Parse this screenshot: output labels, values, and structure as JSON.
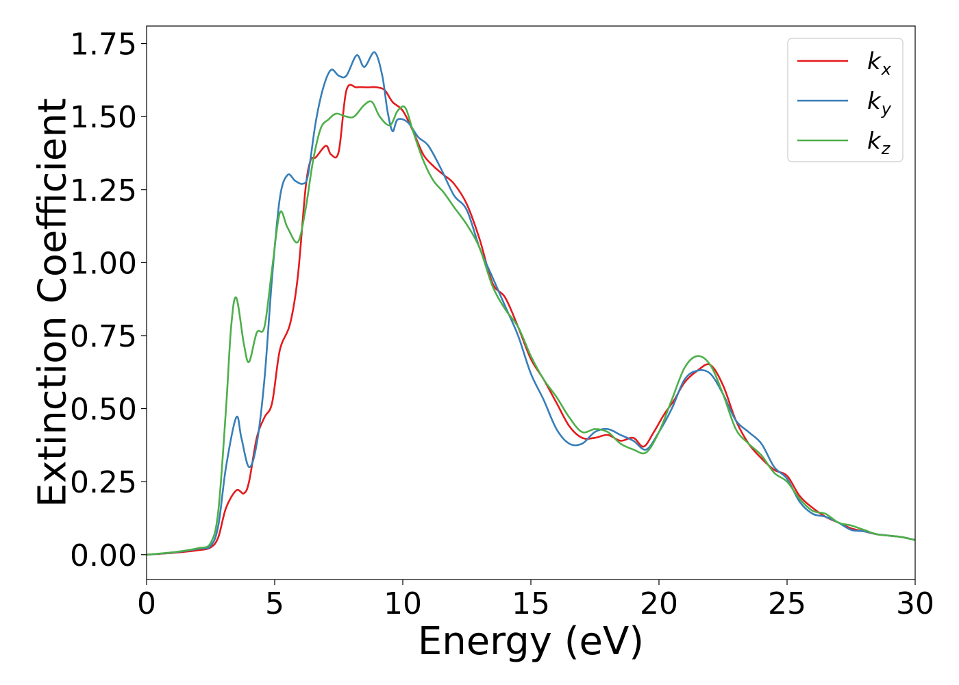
{
  "chart_data": {
    "type": "line",
    "title": "",
    "xlabel": "Energy (eV)",
    "ylabel": "Extinction Coefficient",
    "xlim": [
      0,
      30
    ],
    "ylim": [
      -0.085,
      1.81
    ],
    "xticks": [
      0,
      5,
      10,
      15,
      20,
      25,
      30
    ],
    "xtick_labels": [
      "0",
      "5",
      "10",
      "15",
      "20",
      "25",
      "30"
    ],
    "yticks": [
      0.0,
      0.25,
      0.5,
      0.75,
      1.0,
      1.25,
      1.5,
      1.75
    ],
    "ytick_labels": [
      "0.00",
      "0.25",
      "0.50",
      "0.75",
      "1.00",
      "1.25",
      "1.50",
      "1.75"
    ],
    "grid": false,
    "legend_position": "top-right",
    "series": [
      {
        "name": "k_x",
        "label_main": "k",
        "label_sub": "x",
        "color": "#e41a1c",
        "x": [
          0,
          1,
          2,
          2.5,
          2.8,
          3.1,
          3.5,
          3.8,
          4.0,
          4.3,
          4.6,
          4.9,
          5.2,
          5.6,
          5.9,
          6.2,
          6.4,
          6.6,
          7.0,
          7.2,
          7.5,
          7.8,
          8.2,
          8.6,
          9.0,
          9.3,
          9.6,
          10.0,
          10.4,
          10.8,
          11.2,
          11.6,
          12.0,
          12.5,
          13.0,
          13.5,
          14.0,
          14.5,
          15.0,
          15.5,
          16.0,
          16.5,
          17.0,
          17.5,
          18.0,
          18.5,
          19.0,
          19.4,
          19.8,
          20.2,
          20.6,
          21.0,
          21.5,
          22.0,
          22.5,
          23.0,
          23.5,
          24.0,
          24.5,
          25.0,
          25.5,
          26.0,
          26.5,
          27.0,
          27.5,
          28.0,
          28.5,
          29.0,
          29.5,
          30.0
        ],
        "y": [
          0.0,
          0.006,
          0.015,
          0.025,
          0.06,
          0.16,
          0.22,
          0.21,
          0.25,
          0.4,
          0.47,
          0.52,
          0.7,
          0.79,
          0.95,
          1.25,
          1.35,
          1.36,
          1.4,
          1.37,
          1.38,
          1.59,
          1.6,
          1.6,
          1.6,
          1.59,
          1.55,
          1.52,
          1.45,
          1.37,
          1.33,
          1.3,
          1.27,
          1.2,
          1.08,
          0.93,
          0.88,
          0.78,
          0.67,
          0.6,
          0.52,
          0.44,
          0.4,
          0.4,
          0.41,
          0.39,
          0.4,
          0.37,
          0.42,
          0.48,
          0.53,
          0.59,
          0.63,
          0.65,
          0.58,
          0.46,
          0.38,
          0.33,
          0.29,
          0.27,
          0.2,
          0.16,
          0.13,
          0.11,
          0.09,
          0.08,
          0.07,
          0.065,
          0.06,
          0.05
        ]
      },
      {
        "name": "k_y",
        "label_main": "k",
        "label_sub": "y",
        "color": "#377eb8",
        "x": [
          0,
          1,
          2,
          2.5,
          2.8,
          3.1,
          3.5,
          3.7,
          4.0,
          4.3,
          4.6,
          4.9,
          5.2,
          5.5,
          5.8,
          6.1,
          6.3,
          6.6,
          6.9,
          7.2,
          7.5,
          7.8,
          8.2,
          8.5,
          8.9,
          9.2,
          9.4,
          9.6,
          9.8,
          10.2,
          10.6,
          11.0,
          11.5,
          12.0,
          12.5,
          13.0,
          13.5,
          14.0,
          14.5,
          15.0,
          15.5,
          16.0,
          16.5,
          17.0,
          17.5,
          18.0,
          18.5,
          19.0,
          19.5,
          20.0,
          20.5,
          21.0,
          21.5,
          22.0,
          22.5,
          23.0,
          23.5,
          24.0,
          24.5,
          25.0,
          25.5,
          26.0,
          26.5,
          27.0,
          27.5,
          28.0,
          28.5,
          29.0,
          29.5,
          30.0
        ],
        "y": [
          0.0,
          0.007,
          0.02,
          0.03,
          0.1,
          0.3,
          0.47,
          0.4,
          0.3,
          0.38,
          0.6,
          0.95,
          1.22,
          1.3,
          1.28,
          1.27,
          1.3,
          1.48,
          1.6,
          1.66,
          1.64,
          1.64,
          1.71,
          1.67,
          1.72,
          1.64,
          1.52,
          1.45,
          1.49,
          1.48,
          1.43,
          1.4,
          1.32,
          1.23,
          1.18,
          1.05,
          0.95,
          0.85,
          0.75,
          0.62,
          0.53,
          0.43,
          0.38,
          0.38,
          0.42,
          0.43,
          0.41,
          0.39,
          0.36,
          0.42,
          0.5,
          0.6,
          0.63,
          0.62,
          0.55,
          0.46,
          0.42,
          0.38,
          0.3,
          0.26,
          0.18,
          0.14,
          0.13,
          0.11,
          0.085,
          0.08,
          0.07,
          0.065,
          0.06,
          0.05
        ]
      },
      {
        "name": "k_z",
        "label_main": "k",
        "label_sub": "z",
        "color": "#4daf4a",
        "x": [
          0,
          1,
          2,
          2.5,
          2.8,
          3.1,
          3.3,
          3.5,
          3.8,
          4.0,
          4.3,
          4.6,
          4.9,
          5.2,
          5.5,
          5.9,
          6.2,
          6.5,
          6.8,
          7.1,
          7.4,
          7.8,
          8.1,
          8.5,
          8.8,
          9.1,
          9.5,
          9.8,
          10.1,
          10.4,
          10.8,
          11.2,
          11.6,
          12.0,
          12.5,
          13.0,
          13.5,
          14.0,
          14.5,
          15.0,
          15.5,
          16.0,
          16.5,
          17.0,
          17.5,
          18.0,
          18.5,
          19.0,
          19.5,
          20.0,
          20.5,
          21.0,
          21.5,
          22.0,
          22.5,
          23.0,
          23.5,
          24.0,
          24.5,
          25.0,
          25.5,
          26.0,
          26.5,
          27.0,
          27.5,
          28.0,
          28.5,
          29.0,
          29.5,
          30.0
        ],
        "y": [
          0.0,
          0.008,
          0.022,
          0.04,
          0.15,
          0.5,
          0.78,
          0.88,
          0.72,
          0.66,
          0.76,
          0.78,
          0.98,
          1.17,
          1.12,
          1.07,
          1.18,
          1.35,
          1.46,
          1.49,
          1.51,
          1.5,
          1.5,
          1.54,
          1.55,
          1.5,
          1.47,
          1.52,
          1.53,
          1.45,
          1.35,
          1.28,
          1.24,
          1.19,
          1.13,
          1.05,
          0.92,
          0.84,
          0.78,
          0.68,
          0.6,
          0.54,
          0.47,
          0.42,
          0.43,
          0.42,
          0.38,
          0.36,
          0.35,
          0.42,
          0.53,
          0.64,
          0.68,
          0.65,
          0.55,
          0.43,
          0.38,
          0.34,
          0.28,
          0.25,
          0.19,
          0.15,
          0.14,
          0.11,
          0.1,
          0.085,
          0.07,
          0.065,
          0.06,
          0.05
        ]
      }
    ]
  }
}
